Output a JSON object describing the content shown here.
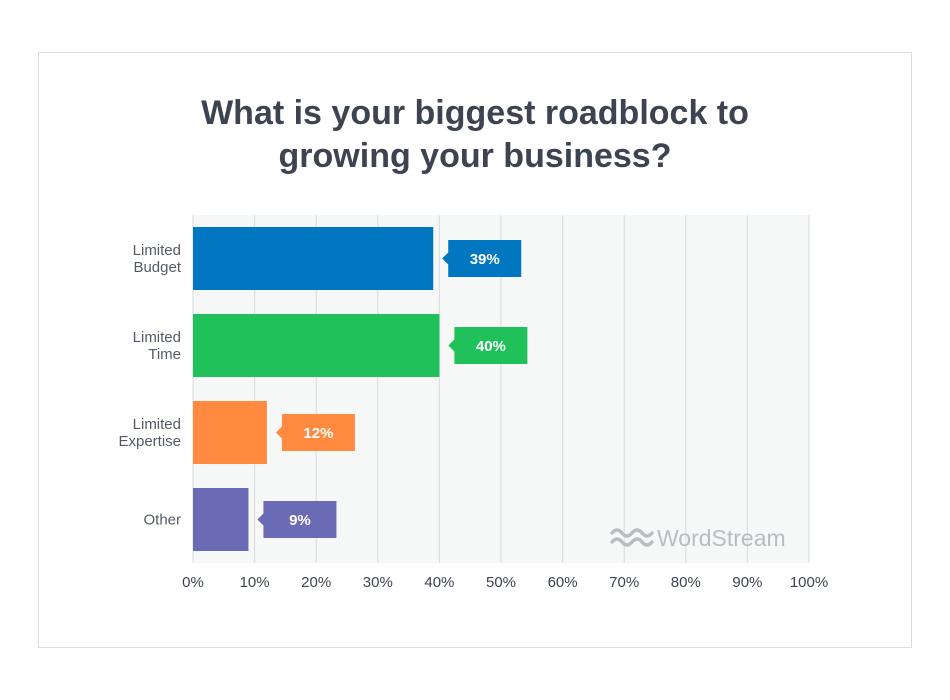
{
  "chart_data": {
    "type": "bar",
    "orientation": "horizontal",
    "title_lines": [
      "What is your biggest roadblock to",
      "growing your business?"
    ],
    "categories": [
      [
        "Limited",
        "Budget"
      ],
      [
        "Limited",
        "Time"
      ],
      [
        "Limited",
        "Expertise"
      ],
      [
        "Other"
      ]
    ],
    "values": [
      39,
      40,
      12,
      9
    ],
    "value_labels": [
      "39%",
      "40%",
      "12%",
      "9%"
    ],
    "colors": [
      "#0077c0",
      "#20c05a",
      "#ff8a40",
      "#6b6bb5"
    ],
    "xlim": [
      0,
      100
    ],
    "x_ticks": [
      0,
      10,
      20,
      30,
      40,
      50,
      60,
      70,
      80,
      90,
      100
    ],
    "x_tick_labels": [
      "0%",
      "10%",
      "20%",
      "30%",
      "40%",
      "50%",
      "60%",
      "70%",
      "80%",
      "90%",
      "100%"
    ],
    "grid": true,
    "plot_background": "#f6f7f7",
    "grid_color": "#d8dadc"
  },
  "watermark": {
    "text": "WordStream",
    "icon": "wave-logo-icon"
  }
}
